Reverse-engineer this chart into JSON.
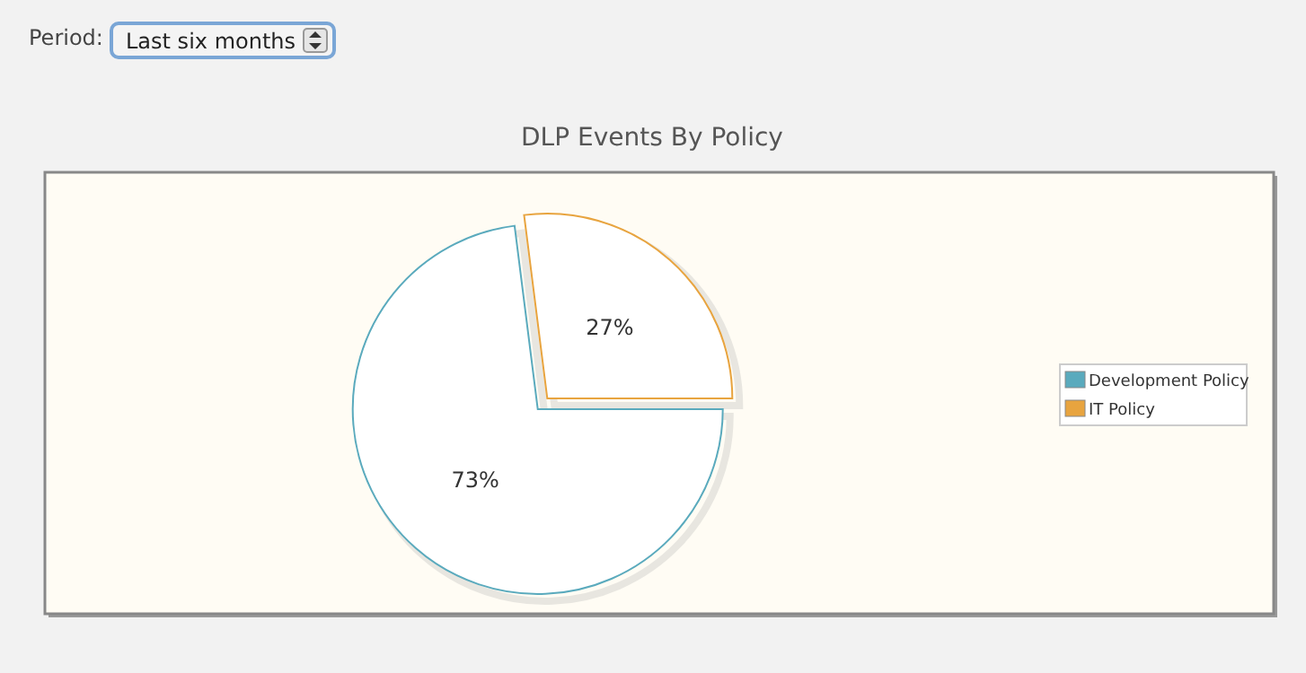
{
  "chart_data": {
    "type": "pie",
    "title": "DLP Events By Policy",
    "categories": [
      "Development Policy",
      "IT Policy"
    ],
    "values": [
      73,
      27
    ],
    "colors": [
      "#5aaabd",
      "#e8a43f"
    ],
    "value_labels": [
      "73%",
      "27%"
    ],
    "legend": "right",
    "annotations": [
      "Period:",
      "Last six months"
    ]
  }
}
